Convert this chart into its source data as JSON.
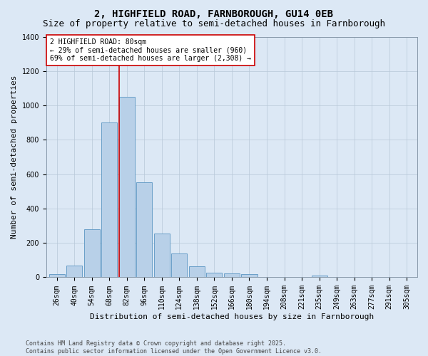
{
  "title": "2, HIGHFIELD ROAD, FARNBOROUGH, GU14 0EB",
  "subtitle": "Size of property relative to semi-detached houses in Farnborough",
  "xlabel": "Distribution of semi-detached houses by size in Farnborough",
  "ylabel": "Number of semi-detached properties",
  "categories": [
    "26sqm",
    "40sqm",
    "54sqm",
    "68sqm",
    "82sqm",
    "96sqm",
    "110sqm",
    "124sqm",
    "138sqm",
    "152sqm",
    "166sqm",
    "180sqm",
    "194sqm",
    "208sqm",
    "221sqm",
    "235sqm",
    "249sqm",
    "263sqm",
    "277sqm",
    "291sqm",
    "305sqm"
  ],
  "values": [
    18,
    68,
    278,
    900,
    1048,
    553,
    253,
    140,
    65,
    28,
    22,
    18,
    0,
    0,
    0,
    12,
    0,
    0,
    0,
    0,
    0
  ],
  "bar_color": "#b8d0e8",
  "bar_edge_color": "#6a9fc8",
  "vline_x_index": 4,
  "vline_color": "#cc0000",
  "annotation_text": "2 HIGHFIELD ROAD: 80sqm\n← 29% of semi-detached houses are smaller (960)\n69% of semi-detached houses are larger (2,308) →",
  "annotation_box_color": "#ffffff",
  "annotation_box_edge": "#cc0000",
  "bg_color": "#dce8f5",
  "ylim": [
    0,
    1400
  ],
  "yticks": [
    0,
    200,
    400,
    600,
    800,
    1000,
    1200,
    1400
  ],
  "footnote": "Contains HM Land Registry data © Crown copyright and database right 2025.\nContains public sector information licensed under the Open Government Licence v3.0.",
  "title_fontsize": 10,
  "subtitle_fontsize": 9,
  "xlabel_fontsize": 8,
  "ylabel_fontsize": 8,
  "tick_fontsize": 7,
  "footnote_fontsize": 6
}
